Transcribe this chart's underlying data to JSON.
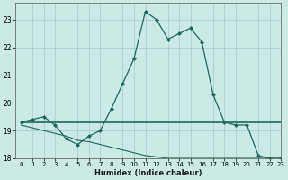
{
  "xlabel": "Humidex (Indice chaleur)",
  "ylabel": "",
  "background_color": "#cce9e5",
  "grid_color": "#aacfcc",
  "line_color": "#1a6b5a",
  "xlim": [
    -0.5,
    23
  ],
  "ylim": [
    18,
    23.6
  ],
  "yticks": [
    18,
    19,
    20,
    21,
    22,
    23
  ],
  "xticks": [
    0,
    1,
    2,
    3,
    4,
    5,
    6,
    7,
    8,
    9,
    10,
    11,
    12,
    13,
    14,
    15,
    16,
    17,
    18,
    19,
    20,
    21,
    22,
    23
  ],
  "line1_x": [
    0,
    1,
    2,
    3,
    4,
    5,
    6,
    7,
    8,
    9,
    10,
    11,
    12,
    13,
    14,
    15,
    16,
    17,
    18,
    19,
    20,
    21,
    22,
    23
  ],
  "line1_y": [
    19.3,
    19.4,
    19.5,
    19.2,
    18.7,
    18.5,
    18.8,
    19.0,
    19.8,
    20.7,
    21.6,
    23.3,
    23.0,
    22.3,
    22.5,
    22.7,
    22.2,
    20.3,
    19.3,
    19.2,
    19.2,
    18.1,
    18.0,
    18.0
  ],
  "line2_x": [
    0,
    1,
    2,
    3,
    4,
    5,
    6,
    7,
    8,
    9,
    10,
    11,
    12,
    13,
    14,
    15,
    16,
    17,
    18,
    19,
    20,
    21,
    22,
    23
  ],
  "line2_y": [
    19.3,
    19.3,
    19.3,
    19.3,
    19.3,
    19.3,
    19.3,
    19.3,
    19.3,
    19.3,
    19.3,
    19.3,
    19.3,
    19.3,
    19.3,
    19.3,
    19.3,
    19.3,
    19.3,
    19.3,
    19.3,
    19.3,
    19.3,
    19.3
  ],
  "line3_x": [
    0,
    1,
    2,
    3,
    4,
    5,
    6,
    7,
    8,
    9,
    10,
    11,
    12,
    13,
    14,
    15,
    16,
    17,
    18,
    19,
    20,
    21,
    22,
    23
  ],
  "line3_y": [
    19.2,
    19.1,
    19.0,
    18.9,
    18.8,
    18.65,
    18.6,
    18.5,
    18.4,
    18.3,
    18.2,
    18.1,
    18.05,
    18.0,
    18.0,
    18.0,
    18.0,
    18.0,
    18.0,
    18.0,
    18.0,
    18.0,
    18.0,
    18.0
  ]
}
